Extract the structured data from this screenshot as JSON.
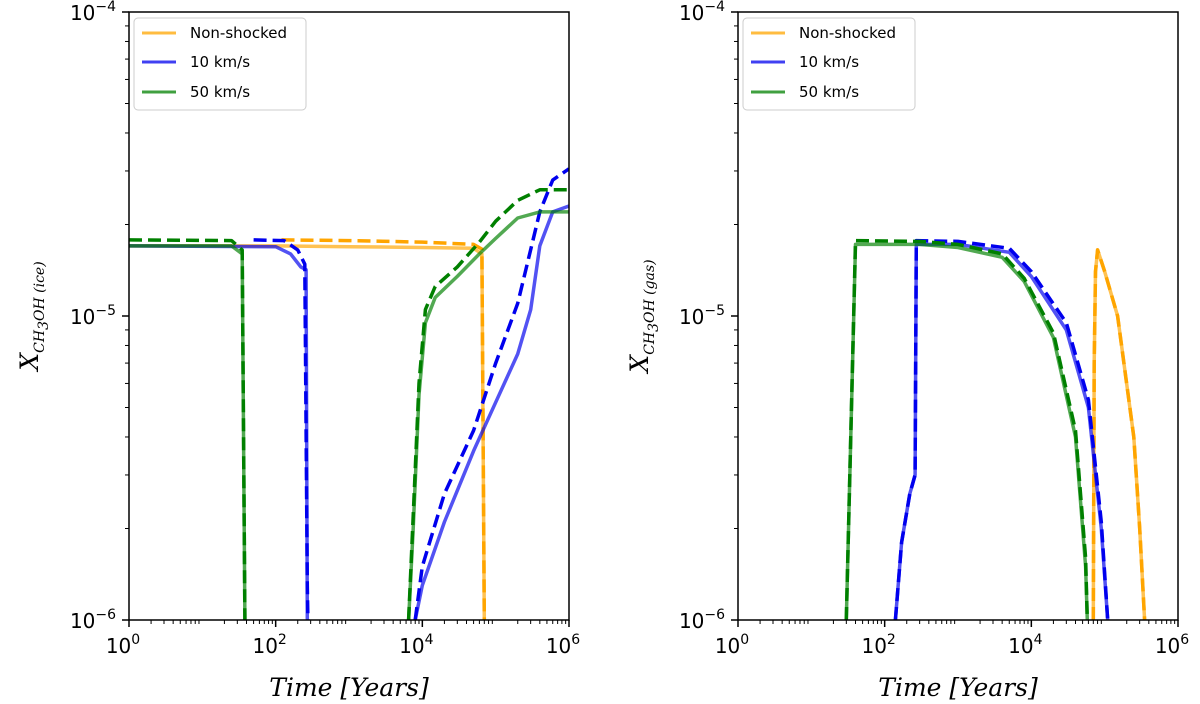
{
  "chart_data": [
    {
      "type": "line",
      "xlabel": "Time [Years]",
      "ylabel": "X_CH3OH (ice)",
      "ylabel_parts": {
        "base": "X",
        "sub_a": "CH",
        "sub_b": "3",
        "sub_c": "OH (ice)"
      },
      "xscale": "log",
      "yscale": "log",
      "xlim": [
        1,
        1000000
      ],
      "ylim": [
        1e-06,
        0.0001
      ],
      "x_ticks": [
        {
          "base": "10",
          "exp": "0"
        },
        {
          "base": "10",
          "exp": "2"
        },
        {
          "base": "10",
          "exp": "4"
        },
        {
          "base": "10",
          "exp": "6"
        }
      ],
      "y_ticks": [
        {
          "base": "10",
          "exp": "−6"
        },
        {
          "base": "10",
          "exp": "−5"
        },
        {
          "base": "10",
          "exp": "−4"
        }
      ],
      "legend": "top-left",
      "series": [
        {
          "name": "Non-shocked",
          "color": "#ffa500",
          "style": "solid",
          "points": [
            [
              1,
              1.7e-05
            ],
            [
              10,
              1.7e-05
            ],
            [
              100,
              1.7e-05
            ],
            [
              1000,
              1.69e-05
            ],
            [
              10000,
              1.68e-05
            ],
            [
              50000,
              1.67e-05
            ],
            [
              65000,
              1.6e-05
            ],
            [
              70000,
              1e-06
            ]
          ]
        },
        {
          "name": "",
          "color": "#ffa500",
          "style": "dashed",
          "points": [
            [
              120,
              1.78e-05
            ],
            [
              1000,
              1.77e-05
            ],
            [
              10000,
              1.75e-05
            ],
            [
              50000,
              1.72e-05
            ],
            [
              65000,
              1.66e-05
            ],
            [
              70000,
              1e-06
            ]
          ]
        },
        {
          "name": "10 km/s",
          "color": "#0000ee",
          "style": "solid",
          "points": [
            [
              1,
              1.7e-05
            ],
            [
              100,
              1.69e-05
            ],
            [
              160,
              1.6e-05
            ],
            [
              220,
              1.45e-05
            ],
            [
              260,
              1.42e-05
            ],
            [
              270,
              1e-06
            ]
          ]
        },
        {
          "name": "",
          "color": "#0000ee",
          "style": "dashed",
          "points": [
            [
              50,
              1.78e-05
            ],
            [
              130,
              1.77e-05
            ],
            [
              200,
              1.65e-05
            ],
            [
              250,
              1.48e-05
            ],
            [
              270,
              1.3e-06
            ],
            [
              275,
              1e-06
            ]
          ]
        },
        {
          "name": "",
          "color": "#0000ee",
          "style": "solid",
          "points": [
            [
              8000,
              1e-06
            ],
            [
              10000,
              1.3e-06
            ],
            [
              20000,
              2.1e-06
            ],
            [
              50000,
              3.6e-06
            ],
            [
              100000,
              5.2e-06
            ],
            [
              200000,
              7.5e-06
            ],
            [
              300000,
              1.05e-05
            ],
            [
              400000,
              1.7e-05
            ],
            [
              600000,
              2.2e-05
            ],
            [
              1000000,
              2.3e-05
            ]
          ]
        },
        {
          "name": "",
          "color": "#0000ee",
          "style": "dashed",
          "points": [
            [
              8000,
              1e-06
            ],
            [
              10000,
              1.5e-06
            ],
            [
              20000,
              2.6e-06
            ],
            [
              50000,
              4.2e-06
            ],
            [
              100000,
              7e-06
            ],
            [
              200000,
              1.1e-05
            ],
            [
              400000,
              2.2e-05
            ],
            [
              600000,
              2.8e-05
            ],
            [
              1000000,
              3.05e-05
            ]
          ]
        },
        {
          "name": "50 km/s",
          "color": "#008000",
          "style": "solid",
          "points": [
            [
              1,
              1.7e-05
            ],
            [
              25,
              1.7e-05
            ],
            [
              35,
              1.6e-05
            ],
            [
              38,
              1e-06
            ]
          ]
        },
        {
          "name": "",
          "color": "#008000",
          "style": "dashed",
          "points": [
            [
              1,
              1.78e-05
            ],
            [
              25,
              1.77e-05
            ],
            [
              35,
              1.65e-05
            ],
            [
              38,
              1e-06
            ]
          ]
        },
        {
          "name": "",
          "color": "#008000",
          "style": "solid",
          "points": [
            [
              6500,
              1e-06
            ],
            [
              7500,
              2e-06
            ],
            [
              9000,
              5.5e-06
            ],
            [
              11000,
              9.5e-06
            ],
            [
              15000,
              1.15e-05
            ],
            [
              30000,
              1.35e-05
            ],
            [
              60000,
              1.6e-05
            ],
            [
              100000,
              1.8e-05
            ],
            [
              200000,
              2.1e-05
            ],
            [
              400000,
              2.2e-05
            ],
            [
              1000000,
              2.2e-05
            ]
          ]
        },
        {
          "name": "",
          "color": "#008000",
          "style": "dashed",
          "points": [
            [
              6500,
              1e-06
            ],
            [
              7500,
              2.2e-06
            ],
            [
              9000,
              6e-06
            ],
            [
              11000,
              1.05e-05
            ],
            [
              15000,
              1.25e-05
            ],
            [
              30000,
              1.45e-05
            ],
            [
              60000,
              1.75e-05
            ],
            [
              100000,
              2.05e-05
            ],
            [
              200000,
              2.4e-05
            ],
            [
              400000,
              2.6e-05
            ],
            [
              1000000,
              2.6e-05
            ]
          ]
        }
      ]
    },
    {
      "type": "line",
      "xlabel": "Time [Years]",
      "ylabel": "X_CH3OH (gas)",
      "ylabel_parts": {
        "base": "X",
        "sub_a": "CH",
        "sub_b": "3",
        "sub_c": "OH (gas)"
      },
      "xscale": "log",
      "yscale": "log",
      "xlim": [
        1,
        1000000
      ],
      "ylim": [
        1e-06,
        0.0001
      ],
      "x_ticks": [
        {
          "base": "10",
          "exp": "0"
        },
        {
          "base": "10",
          "exp": "2"
        },
        {
          "base": "10",
          "exp": "4"
        },
        {
          "base": "10",
          "exp": "6"
        }
      ],
      "y_ticks": [
        {
          "base": "10",
          "exp": "−6"
        },
        {
          "base": "10",
          "exp": "−5"
        },
        {
          "base": "10",
          "exp": "−4"
        }
      ],
      "legend": "top-left",
      "series": [
        {
          "name": "Non-shocked",
          "color": "#ffa500",
          "style": "solid",
          "points": [
            [
              70000,
              1e-06
            ],
            [
              72000,
              7e-06
            ],
            [
              75000,
              1.4e-05
            ],
            [
              80000,
              1.65e-05
            ],
            [
              100000,
              1.4e-05
            ],
            [
              150000,
              1e-05
            ],
            [
              250000,
              4e-06
            ],
            [
              300000,
              2e-06
            ],
            [
              350000,
              1e-06
            ]
          ]
        },
        {
          "name": "",
          "color": "#ffa500",
          "style": "dashed",
          "points": [
            [
              70000,
              1e-06
            ],
            [
              72000,
              7e-06
            ],
            [
              75000,
              1.4e-05
            ],
            [
              80000,
              1.65e-05
            ],
            [
              100000,
              1.4e-05
            ],
            [
              150000,
              1e-05
            ],
            [
              250000,
              4e-06
            ],
            [
              300000,
              2e-06
            ],
            [
              350000,
              1e-06
            ]
          ]
        },
        {
          "name": "10 km/s",
          "color": "#0000ee",
          "style": "solid",
          "points": [
            [
              140,
              1e-06
            ],
            [
              170,
              1.8e-06
            ],
            [
              220,
              2.6e-06
            ],
            [
              260,
              3e-06
            ],
            [
              270,
              1.72e-05
            ],
            [
              1000,
              1.72e-05
            ],
            [
              5000,
              1.62e-05
            ],
            [
              10000,
              1.35e-05
            ],
            [
              30000,
              9e-06
            ],
            [
              60000,
              5e-06
            ],
            [
              90000,
              2e-06
            ],
            [
              110000,
              1e-06
            ]
          ]
        },
        {
          "name": "",
          "color": "#0000ee",
          "style": "dashed",
          "points": [
            [
              140,
              1e-06
            ],
            [
              170,
              1.8e-06
            ],
            [
              220,
              2.6e-06
            ],
            [
              260,
              3e-06
            ],
            [
              270,
              1.77e-05
            ],
            [
              1000,
              1.76e-05
            ],
            [
              5000,
              1.67e-05
            ],
            [
              10000,
              1.4e-05
            ],
            [
              30000,
              9.5e-06
            ],
            [
              60000,
              5.3e-06
            ],
            [
              90000,
              2.1e-06
            ],
            [
              110000,
              1e-06
            ]
          ]
        },
        {
          "name": "50 km/s",
          "color": "#008000",
          "style": "solid",
          "points": [
            [
              30,
              1e-06
            ],
            [
              40,
              1.72e-05
            ],
            [
              300,
              1.72e-05
            ],
            [
              1000,
              1.68e-05
            ],
            [
              4000,
              1.56e-05
            ],
            [
              8000,
              1.3e-05
            ],
            [
              20000,
              8.5e-06
            ],
            [
              40000,
              4e-06
            ],
            [
              55000,
              1.5e-06
            ],
            [
              58000,
              1e-06
            ]
          ]
        },
        {
          "name": "",
          "color": "#008000",
          "style": "dashed",
          "points": [
            [
              30,
              1e-06
            ],
            [
              40,
              1.77e-05
            ],
            [
              300,
              1.76e-05
            ],
            [
              1000,
              1.72e-05
            ],
            [
              4000,
              1.6e-05
            ],
            [
              8000,
              1.33e-05
            ],
            [
              20000,
              8.8e-06
            ],
            [
              40000,
              4.2e-06
            ],
            [
              55000,
              1.6e-06
            ],
            [
              58000,
              1e-06
            ]
          ]
        }
      ]
    }
  ]
}
